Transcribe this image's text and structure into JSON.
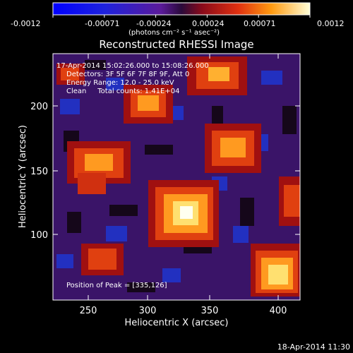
{
  "colorbar": {
    "ticks": [
      "-0.0012",
      "-0.00071",
      "-0.00024",
      "0.00024",
      "0.00071",
      "0.0012"
    ],
    "units_label": "(photons cm⁻² s⁻¹ asec⁻²)"
  },
  "title": "Reconstructed RHESSI Image",
  "annotations": {
    "time_range": "17-Apr-2014 15:02:26.000 to 15:08:26.000",
    "detectors": "Detectors: 3F 5F 6F 7F 8F 9F, Att 0",
    "energy_range": "Energy Range: 12.0 - 25.0 keV",
    "clean": "Clean     Total counts: 1.41E+04",
    "peak": "Position of Peak = [335,126]"
  },
  "axes": {
    "xlabel": "Heliocentric X (arcsec)",
    "ylabel": "Heliocentric Y (arcsec)",
    "xticks": [
      "250",
      "300",
      "350",
      "400"
    ],
    "yticks": [
      "100",
      "150",
      "200"
    ]
  },
  "footer": {
    "timestamp": "18-Apr-2014 11:30"
  },
  "colors": {
    "background": "#000000",
    "text": "#ffffff"
  }
}
